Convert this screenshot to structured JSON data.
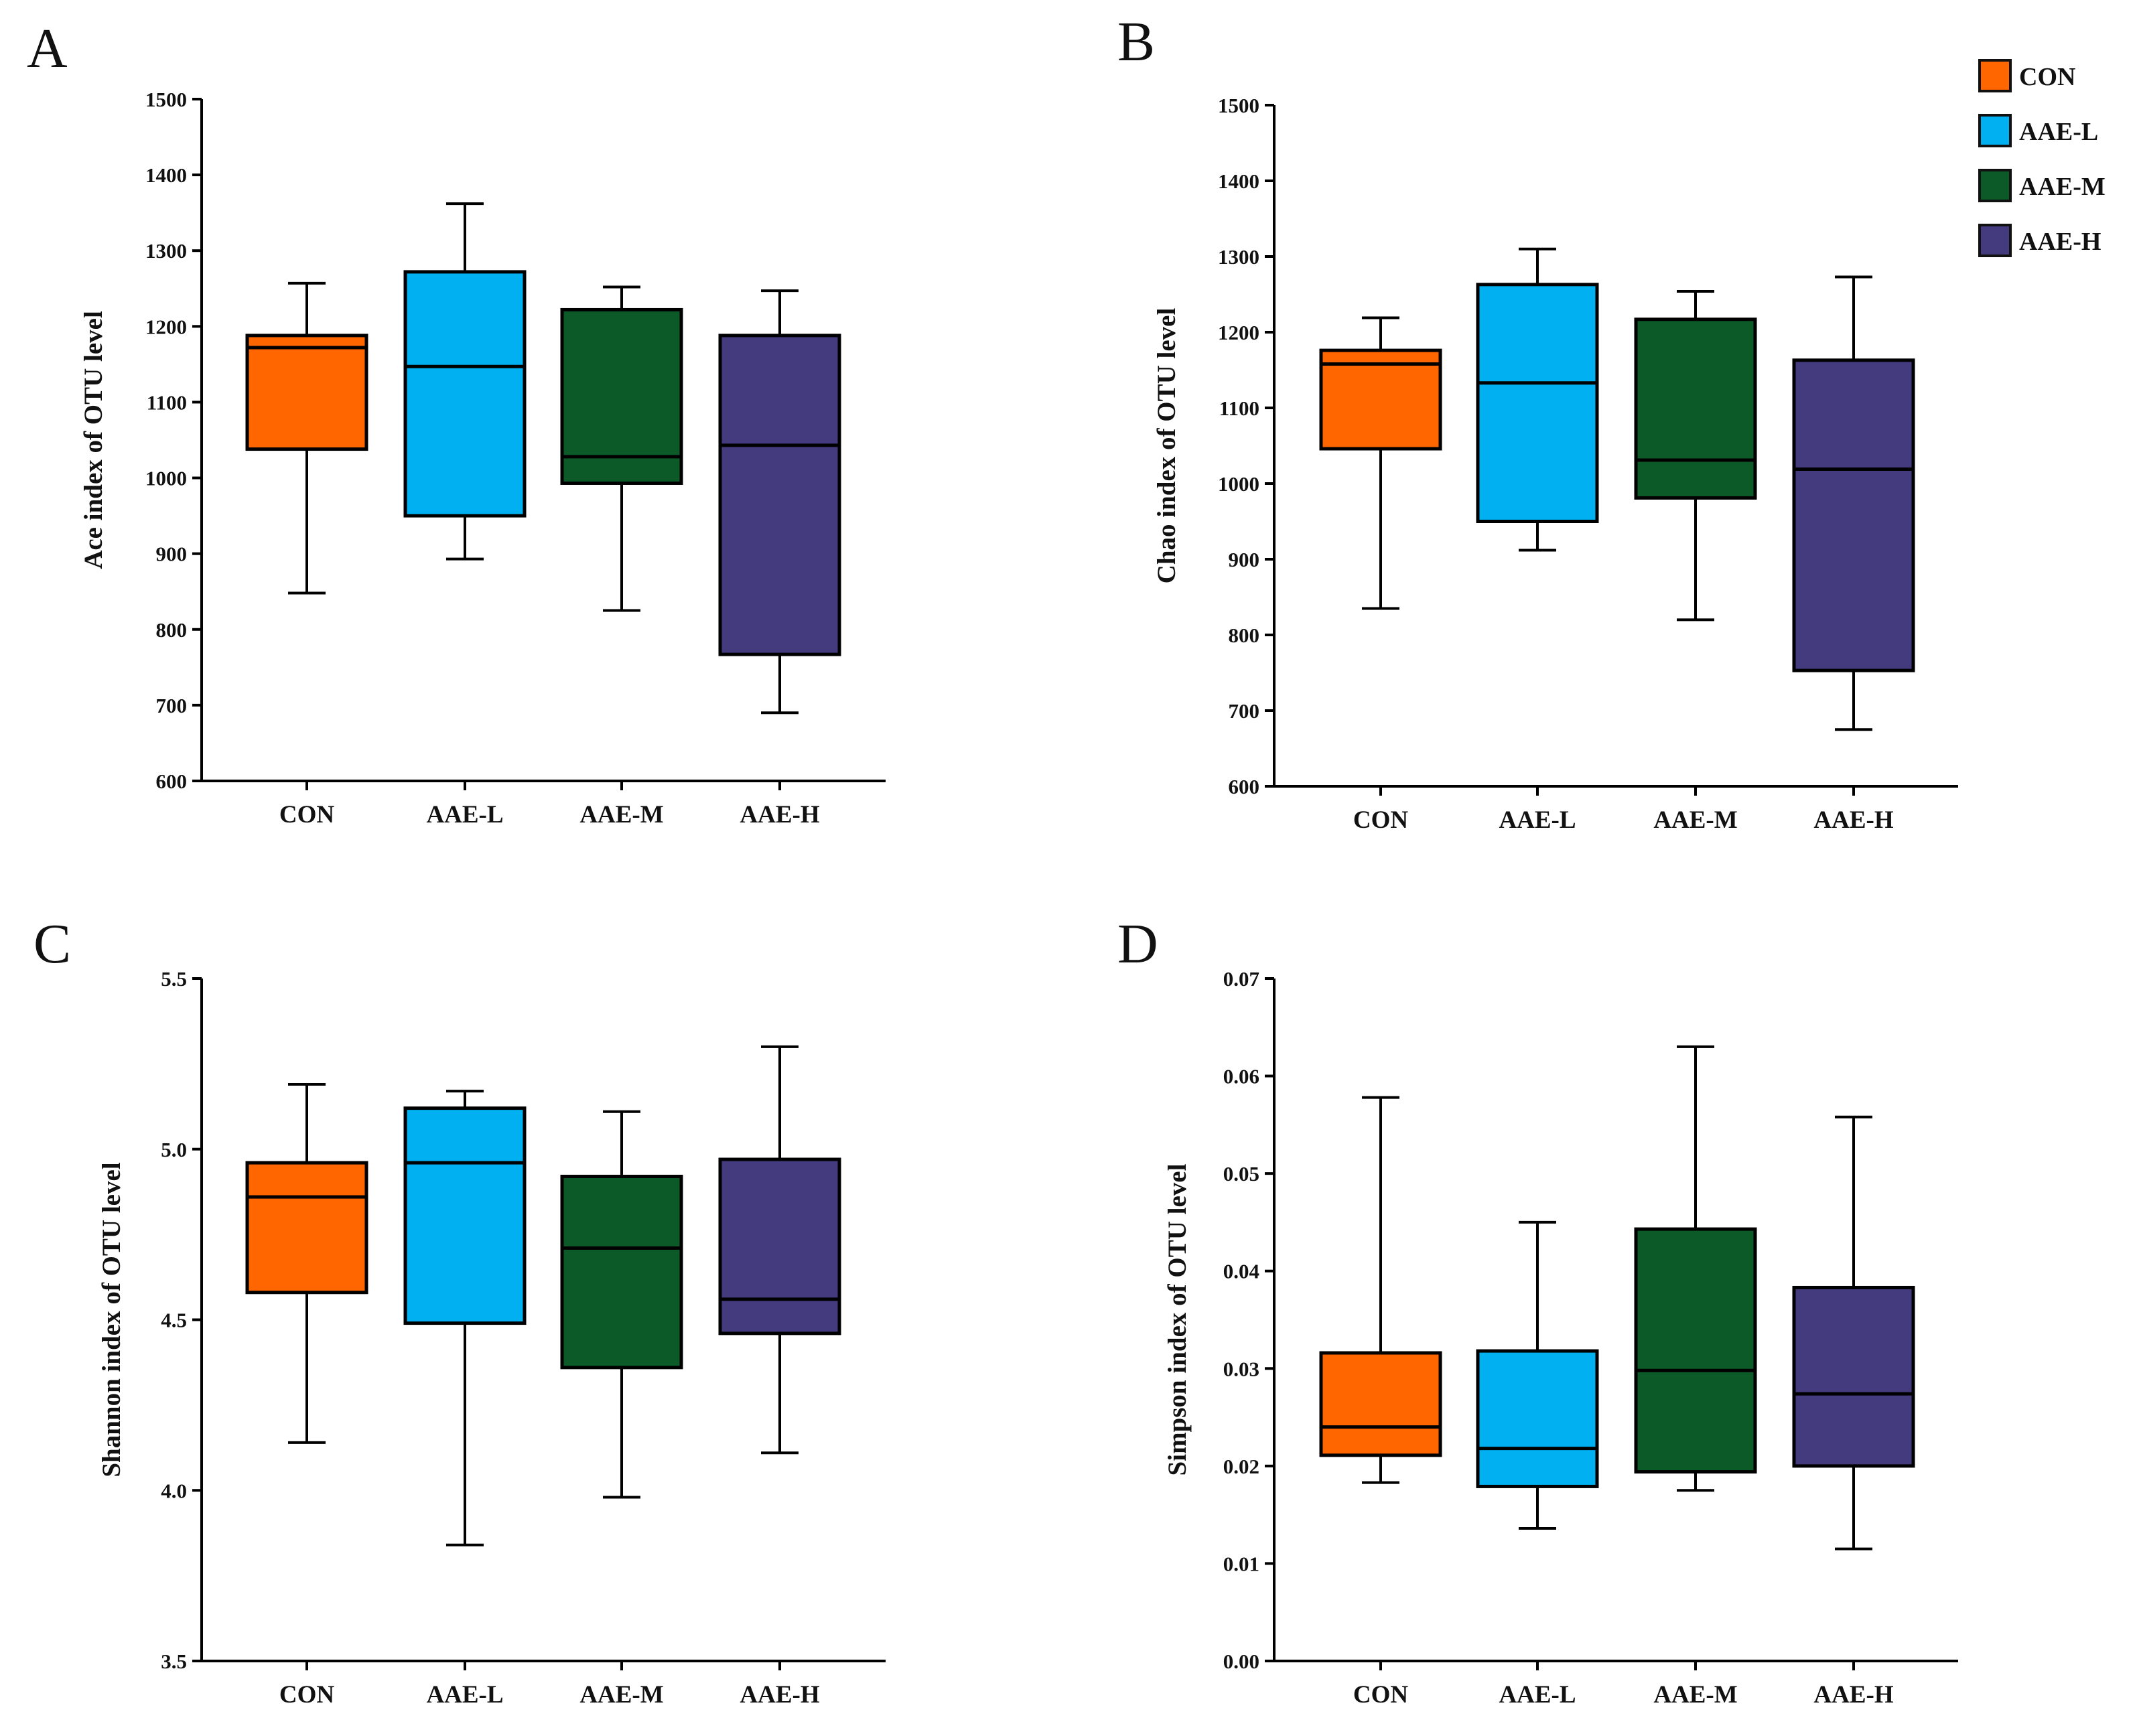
{
  "legend": {
    "position": "top-right",
    "items": [
      {
        "label": "CON",
        "color": "#FF6600"
      },
      {
        "label": "AAE-L",
        "color": "#00B0F0"
      },
      {
        "label": "AAE-M",
        "color": "#0B5A28"
      },
      {
        "label": "AAE-H",
        "color": "#433B7E"
      }
    ]
  },
  "chart_data": [
    {
      "panel": "A",
      "type": "box",
      "ylabel": "Ace index of OTU level",
      "xlabel": "",
      "categories": [
        "CON",
        "AAE-L",
        "AAE-M",
        "AAE-H"
      ],
      "ylim": [
        600,
        1500
      ],
      "yticks": [
        600,
        700,
        800,
        900,
        1000,
        1100,
        1200,
        1300,
        1400,
        1500
      ],
      "tick_format": 0,
      "boxes": [
        {
          "min": 848,
          "q1": 1038,
          "median": 1172,
          "q3": 1188,
          "max": 1257
        },
        {
          "min": 893,
          "q1": 950,
          "median": 1147,
          "q3": 1272,
          "max": 1362
        },
        {
          "min": 825,
          "q1": 993,
          "median": 1028,
          "q3": 1222,
          "max": 1252
        },
        {
          "min": 690,
          "q1": 767,
          "median": 1043,
          "q3": 1188,
          "max": 1247
        }
      ]
    },
    {
      "panel": "B",
      "type": "box",
      "ylabel": "Chao index of OTU level",
      "xlabel": "",
      "categories": [
        "CON",
        "AAE-L",
        "AAE-M",
        "AAE-H"
      ],
      "ylim": [
        600,
        1500
      ],
      "yticks": [
        600,
        700,
        800,
        900,
        1000,
        1100,
        1200,
        1300,
        1400,
        1500
      ],
      "tick_format": 0,
      "boxes": [
        {
          "min": 835,
          "q1": 1046,
          "median": 1158,
          "q3": 1176,
          "max": 1219
        },
        {
          "min": 912,
          "q1": 950,
          "median": 1133,
          "q3": 1263,
          "max": 1310
        },
        {
          "min": 820,
          "q1": 981,
          "median": 1031,
          "q3": 1217,
          "max": 1254
        },
        {
          "min": 675,
          "q1": 753,
          "median": 1019,
          "q3": 1163,
          "max": 1273
        }
      ]
    },
    {
      "panel": "C",
      "type": "box",
      "ylabel": "Shannon index of OTU level",
      "xlabel": "",
      "categories": [
        "CON",
        "AAE-L",
        "AAE-M",
        "AAE-H"
      ],
      "ylim": [
        3.5,
        5.5
      ],
      "yticks": [
        3.5,
        4.0,
        4.5,
        5.0,
        5.5
      ],
      "tick_format": 1,
      "boxes": [
        {
          "min": 4.14,
          "q1": 4.58,
          "median": 4.86,
          "q3": 4.96,
          "max": 5.19
        },
        {
          "min": 3.84,
          "q1": 4.49,
          "median": 4.96,
          "q3": 5.12,
          "max": 5.17
        },
        {
          "min": 3.98,
          "q1": 4.36,
          "median": 4.71,
          "q3": 4.92,
          "max": 5.11
        },
        {
          "min": 4.11,
          "q1": 4.46,
          "median": 4.56,
          "q3": 4.97,
          "max": 5.3
        }
      ]
    },
    {
      "panel": "D",
      "type": "box",
      "ylabel": "Simpson index of OTU level",
      "xlabel": "",
      "categories": [
        "CON",
        "AAE-L",
        "AAE-M",
        "AAE-H"
      ],
      "ylim": [
        0,
        0.07
      ],
      "yticks": [
        0,
        0.01,
        0.02,
        0.03,
        0.04,
        0.05,
        0.06,
        0.07
      ],
      "tick_format": 2,
      "boxes": [
        {
          "min": 0.0183,
          "q1": 0.0211,
          "median": 0.024,
          "q3": 0.0316,
          "max": 0.0578
        },
        {
          "min": 0.0136,
          "q1": 0.0179,
          "median": 0.0218,
          "q3": 0.0318,
          "max": 0.045
        },
        {
          "min": 0.0175,
          "q1": 0.0194,
          "median": 0.0298,
          "q3": 0.0443,
          "max": 0.063
        },
        {
          "min": 0.0115,
          "q1": 0.02,
          "median": 0.0274,
          "q3": 0.0383,
          "max": 0.0558
        }
      ]
    }
  ]
}
